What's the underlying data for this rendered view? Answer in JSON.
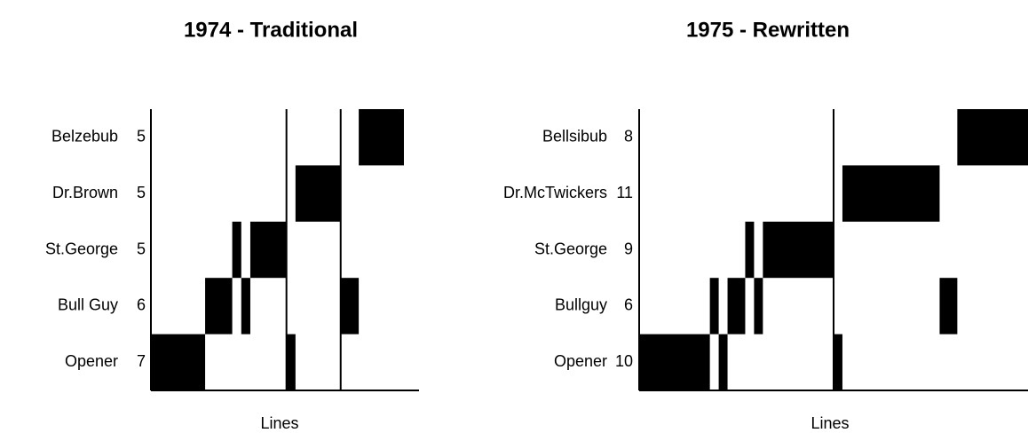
{
  "chart_data": [
    {
      "type": "timeline",
      "title": "1974 - Traditional",
      "xlabel": "Lines",
      "xlim": [
        0,
        28
      ],
      "dividers": [
        15,
        21
      ],
      "color": "#000000",
      "rows": [
        {
          "name": "Belzebub",
          "count": 5,
          "spans": [
            [
              23,
              28
            ]
          ]
        },
        {
          "name": "Dr.Brown",
          "count": 5,
          "spans": [
            [
              16,
              21
            ]
          ]
        },
        {
          "name": "St.George",
          "count": 5,
          "spans": [
            [
              9,
              10
            ],
            [
              11,
              15
            ]
          ]
        },
        {
          "name": "Bull Guy",
          "count": 6,
          "spans": [
            [
              6,
              9
            ],
            [
              10,
              11
            ],
            [
              21,
              23
            ]
          ]
        },
        {
          "name": "Opener",
          "count": 7,
          "spans": [
            [
              0,
              6
            ],
            [
              15,
              16
            ]
          ]
        }
      ]
    },
    {
      "type": "timeline",
      "title": "1975 - Rewritten",
      "xlabel": "Lines",
      "xlim": [
        0,
        44
      ],
      "dividers": [
        22
      ],
      "color": "#000000",
      "rows": [
        {
          "name": "Bellsibub",
          "count": 8,
          "spans": [
            [
              36,
              44
            ]
          ]
        },
        {
          "name": "Dr.McTwickers",
          "count": 11,
          "spans": [
            [
              23,
              34
            ]
          ]
        },
        {
          "name": "St.George",
          "count": 9,
          "spans": [
            [
              12,
              13
            ],
            [
              14,
              22
            ]
          ]
        },
        {
          "name": "Bullguy",
          "count": 6,
          "spans": [
            [
              8,
              9
            ],
            [
              10,
              12
            ],
            [
              13,
              14
            ],
            [
              34,
              36
            ]
          ]
        },
        {
          "name": "Opener",
          "count": 10,
          "spans": [
            [
              0,
              8
            ],
            [
              9,
              10
            ],
            [
              22,
              23
            ]
          ]
        }
      ]
    }
  ]
}
